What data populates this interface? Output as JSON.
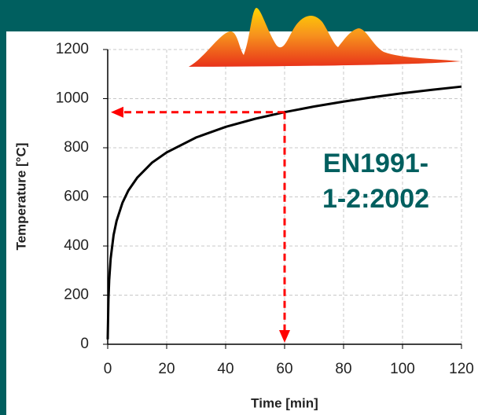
{
  "chart_data": {
    "type": "line",
    "x_label": "Time [min]",
    "y_label": "Temperature [°C]",
    "annotation": [
      "EN1991-",
      "1-2:2002"
    ],
    "x": [
      0,
      0.25,
      0.5,
      1,
      2,
      3,
      5,
      7,
      10,
      15,
      20,
      30,
      40,
      50,
      60,
      70,
      80,
      90,
      100,
      110,
      120
    ],
    "series": [
      {
        "color": "#000000",
        "values": [
          20,
          185,
          261,
          349,
          445,
          502,
          576,
          626,
          678,
          739,
          781,
          842,
          885,
          918,
          945,
          968,
          988,
          1006,
          1022,
          1036,
          1049
        ]
      }
    ],
    "marker": {
      "x": 60,
      "y": 945,
      "color": "#ff0000"
    },
    "xlim": [
      0,
      120
    ],
    "xticks": [
      0,
      20,
      40,
      60,
      80,
      100,
      120
    ],
    "ylim": [
      0,
      1200
    ],
    "yticks": [
      0,
      200,
      400,
      600,
      800,
      1000,
      1200
    ],
    "grid": true
  }
}
